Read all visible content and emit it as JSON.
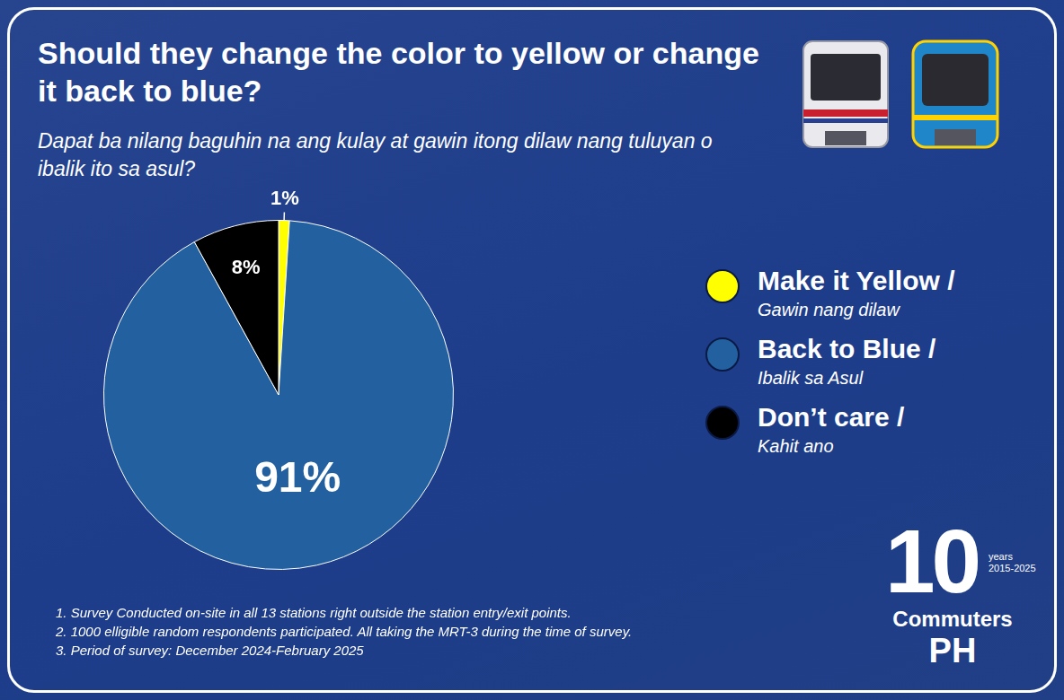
{
  "chart_data": {
    "type": "pie",
    "title": "Should they change the color to yellow or change it back to blue?",
    "subtitle": "Dapat ba nilang baguhin na ang kulay at gawin itong dilaw nang tuluyan o ibalik ito sa asul?",
    "categories": [
      "Make it Yellow /",
      "Back to Blue /",
      "Don’t care /"
    ],
    "category_translations": [
      "Gawin nang dilaw",
      "Ibalik sa Asul",
      "Kahit ano"
    ],
    "values": [
      1,
      91,
      8
    ],
    "value_labels": [
      "1%",
      "91%",
      "8%"
    ],
    "colors": [
      "#ffff00",
      "#22609f",
      "#000000"
    ],
    "data_labels": true,
    "legend": "right",
    "notes": [
      "1. Survey Conducted on-site in all 13 stations right outside the station entry/exit points.",
      "2. 1000 elligible random respondents participated. All taking the MRT-3 during the time of survey.",
      "3. Period of survey: December 2024-February 2025"
    ]
  },
  "logo": {
    "number": "10",
    "years": "years",
    "period": "2015-2025",
    "name": "Commuters",
    "country": "PH"
  }
}
